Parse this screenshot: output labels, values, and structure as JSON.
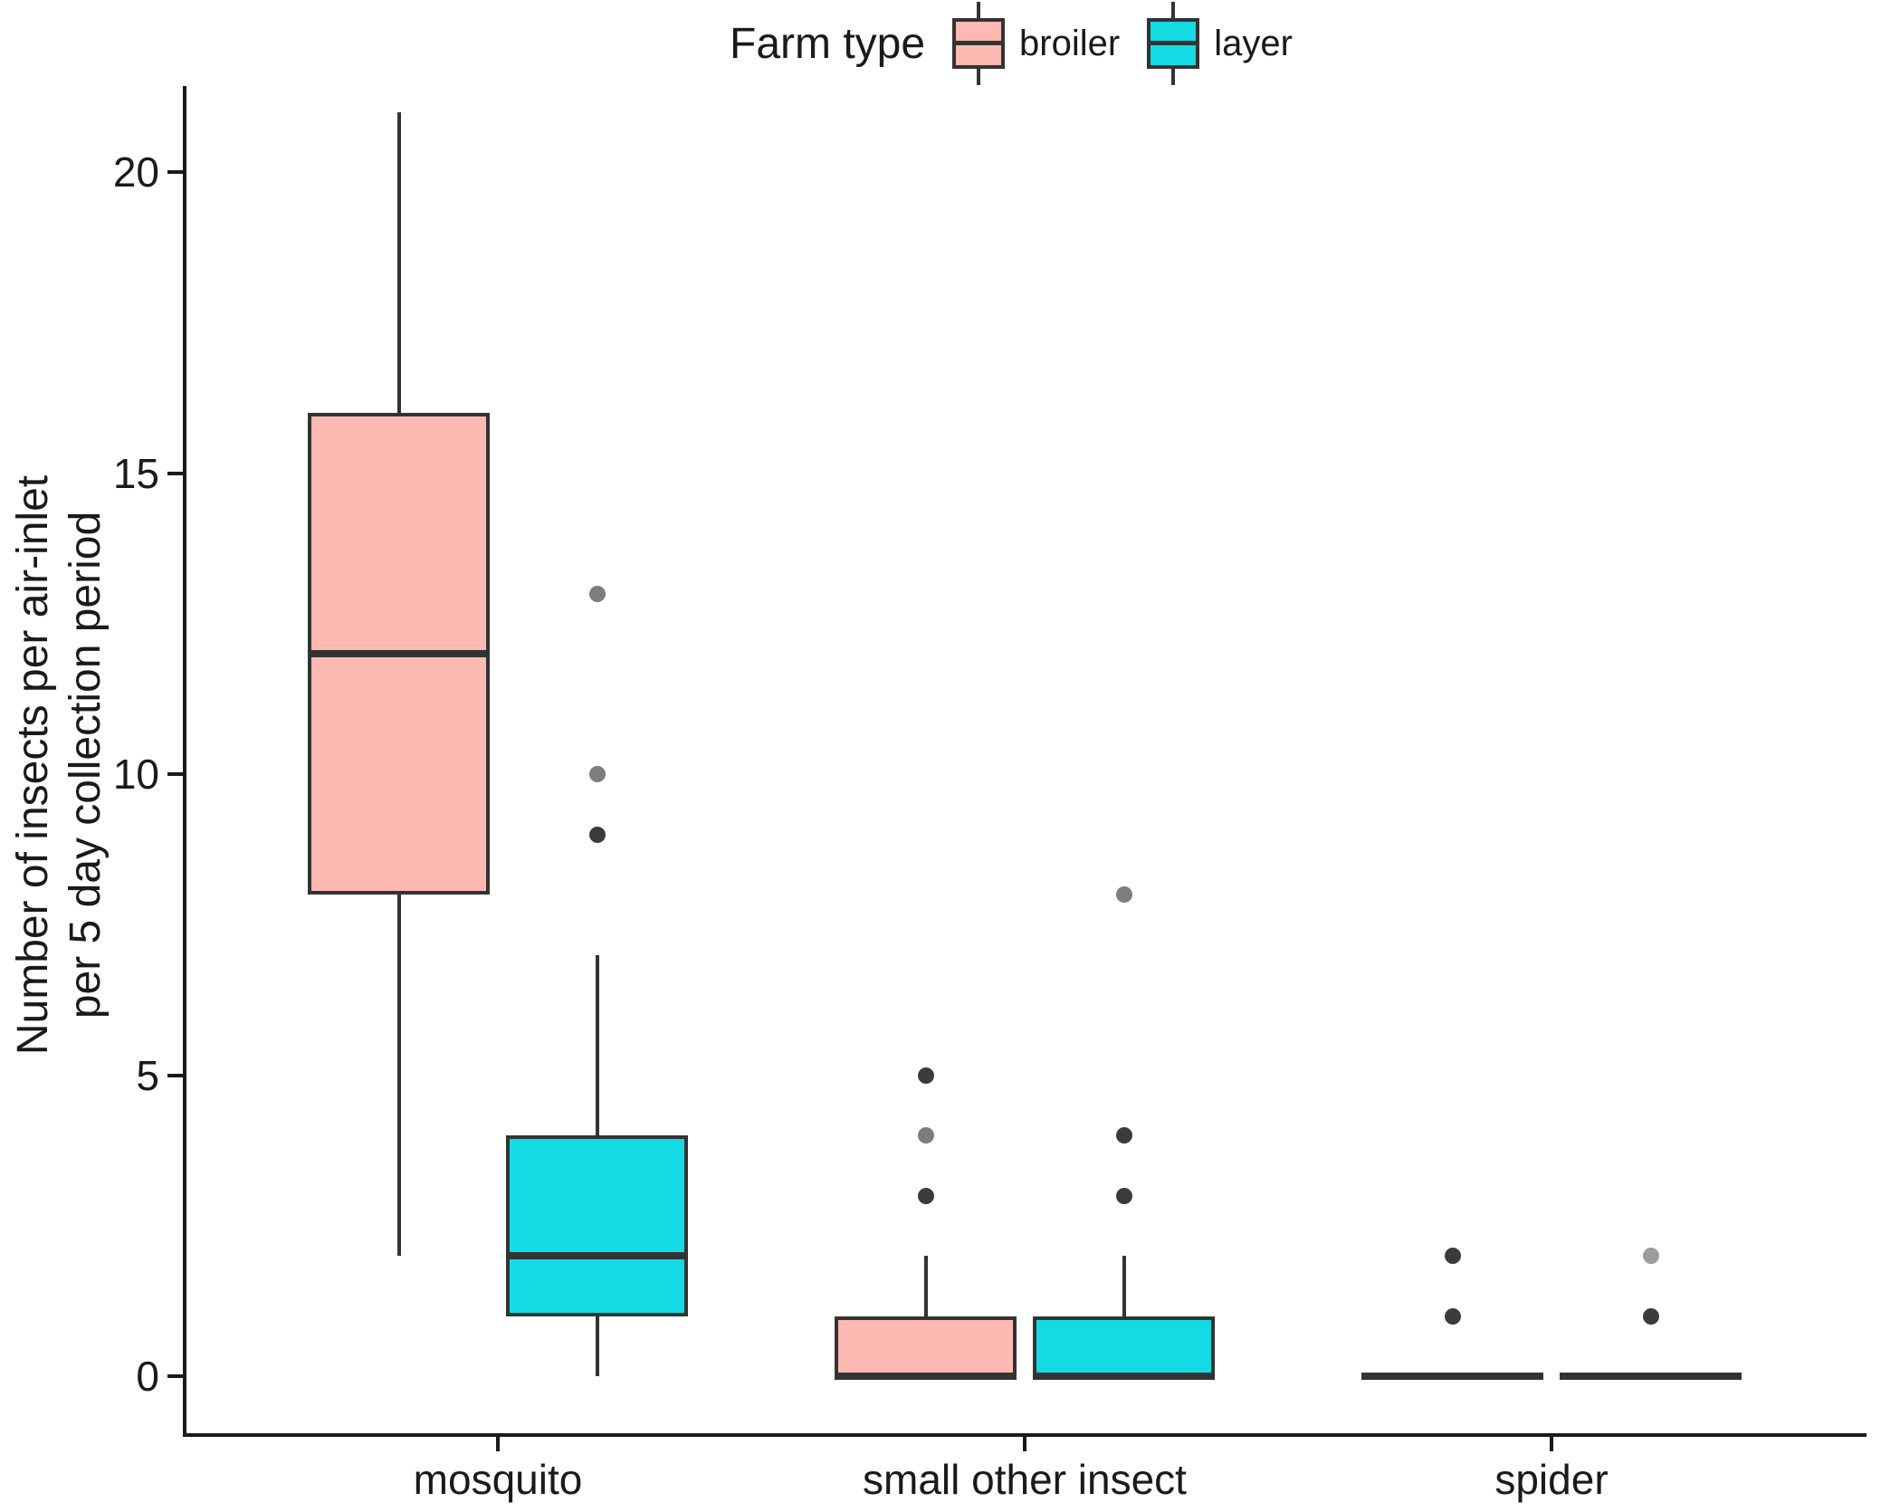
{
  "chart_data": {
    "type": "boxplot",
    "ylabel_lines": [
      "Number of insects per air-inlet",
      "per 5 day collection period"
    ],
    "xlabel": "",
    "categories": [
      "mosquito",
      "small other insect",
      "spider"
    ],
    "yticks": [
      0,
      5,
      10,
      15,
      20
    ],
    "ylim": [
      -0.8,
      21.5
    ],
    "grid": "off",
    "legend": {
      "title": "Farm type",
      "position": "top-center",
      "entries": [
        {
          "label": "broiler",
          "fill": "#FFB9B3"
        },
        {
          "label": "layer",
          "fill": "#14DBE3"
        }
      ]
    },
    "outlier_shades": {
      "dark": "#3b3b3b",
      "medium": "#7d7d7d",
      "light": "#9d9d9d"
    },
    "series": [
      {
        "name": "broiler",
        "fill": "#FFB9B3",
        "boxes": [
          {
            "category": "mosquito",
            "whisker_low": 2,
            "q1": 8,
            "median": 12,
            "q3": 16,
            "whisker_high": 21,
            "outliers": []
          },
          {
            "category": "small other insect",
            "whisker_low": 0,
            "q1": 0,
            "median": 0,
            "q3": 1,
            "whisker_high": 2,
            "outliers": [
              {
                "value": 3,
                "shade": "dark"
              },
              {
                "value": 4,
                "shade": "medium"
              },
              {
                "value": 5,
                "shade": "dark"
              }
            ]
          },
          {
            "category": "spider",
            "whisker_low": 0,
            "q1": 0,
            "median": 0,
            "q3": 0,
            "whisker_high": 0,
            "outliers": [
              {
                "value": 1,
                "shade": "dark"
              },
              {
                "value": 2,
                "shade": "dark"
              }
            ]
          }
        ]
      },
      {
        "name": "layer",
        "fill": "#14DBE3",
        "boxes": [
          {
            "category": "mosquito",
            "whisker_low": 0,
            "q1": 1,
            "median": 2,
            "q3": 4,
            "whisker_high": 7,
            "outliers": [
              {
                "value": 9,
                "shade": "dark"
              },
              {
                "value": 10,
                "shade": "medium"
              },
              {
                "value": 13,
                "shade": "medium"
              }
            ]
          },
          {
            "category": "small other insect",
            "whisker_low": 0,
            "q1": 0,
            "median": 0,
            "q3": 1,
            "whisker_high": 2,
            "outliers": [
              {
                "value": 3,
                "shade": "dark"
              },
              {
                "value": 4,
                "shade": "dark"
              },
              {
                "value": 8,
                "shade": "medium"
              }
            ]
          },
          {
            "category": "spider",
            "whisker_low": 0,
            "q1": 0,
            "median": 0,
            "q3": 0,
            "whisker_high": 0,
            "outliers": [
              {
                "value": 1,
                "shade": "dark"
              },
              {
                "value": 2,
                "shade": "light"
              }
            ]
          }
        ]
      }
    ]
  }
}
